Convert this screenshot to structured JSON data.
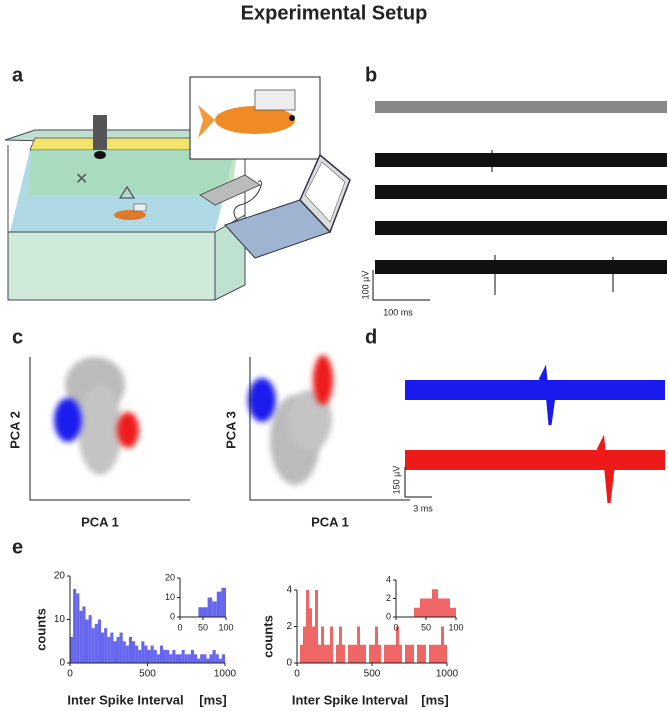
{
  "title": "Experimental Setup",
  "panels": {
    "a": "a",
    "b": "b",
    "c": "c",
    "d": "d",
    "e": "e"
  },
  "panel_b": {
    "scale_y": "100 µV",
    "scale_x": "100 ms"
  },
  "panel_c": {
    "y1": "PCA 2",
    "x1": "PCA 1",
    "y2": "PCA 3",
    "x2": "PCA 1"
  },
  "panel_d": {
    "scale_y": "150 µV",
    "scale_x": "3 ms"
  },
  "chart_data": [
    {
      "type": "histogram",
      "color": "#6666ee",
      "ylabel": "counts",
      "xlabel": "Inter Spike Interval",
      "xunit": "[ms]",
      "bins": [
        0,
        20,
        40,
        60,
        80,
        100,
        120,
        140,
        160,
        180,
        200,
        220,
        240,
        260,
        280,
        300,
        320,
        340,
        360,
        380,
        400,
        420,
        440,
        460,
        480,
        500,
        520,
        540,
        560,
        580,
        600,
        620,
        640,
        660,
        680,
        700,
        720,
        740,
        760,
        780,
        800,
        820,
        840,
        860,
        880,
        900,
        920,
        940,
        960,
        980,
        1000
      ],
      "values": [
        6,
        17,
        16,
        12,
        13,
        10,
        11,
        8,
        9,
        10,
        7,
        8,
        6,
        7,
        5,
        6,
        7,
        5,
        4,
        6,
        5,
        4,
        3,
        5,
        4,
        3,
        4,
        3,
        2,
        4,
        3,
        3,
        2,
        3,
        2,
        2,
        3,
        2,
        2,
        3,
        2,
        1,
        2,
        2,
        1,
        2,
        3,
        2,
        1,
        2
      ],
      "xlim": [
        0,
        1000
      ],
      "ylim": [
        0,
        20
      ],
      "xticks": [
        0,
        500,
        1000
      ],
      "yticks": [
        0,
        10,
        20
      ]
    },
    {
      "type": "histogram",
      "color": "#6666ee",
      "bins": [
        0,
        10,
        20,
        30,
        40,
        50,
        60,
        70,
        80,
        90,
        100
      ],
      "values": [
        0,
        0,
        0,
        0,
        5,
        5,
        10,
        8,
        13,
        15
      ],
      "xlim": [
        0,
        100
      ],
      "ylim": [
        0,
        20
      ],
      "xticks": [
        0,
        50,
        100
      ],
      "yticks": [
        0,
        10,
        20
      ]
    },
    {
      "type": "histogram",
      "color": "#ee6666",
      "ylabel": "counts",
      "xlabel": "Inter Spike Interval",
      "xunit": "[ms]",
      "bins": [
        0,
        20,
        40,
        60,
        80,
        100,
        120,
        140,
        160,
        180,
        200,
        220,
        240,
        260,
        280,
        300,
        320,
        340,
        360,
        380,
        400,
        420,
        440,
        460,
        480,
        500,
        520,
        540,
        560,
        580,
        600,
        620,
        640,
        660,
        680,
        700,
        720,
        740,
        760,
        780,
        800,
        820,
        840,
        860,
        880,
        900,
        920,
        940,
        960,
        980,
        1000
      ],
      "values": [
        0,
        1,
        2,
        4,
        3,
        2,
        4,
        1,
        2,
        1,
        1,
        2,
        0,
        1,
        2,
        1,
        0,
        1,
        1,
        1,
        2,
        1,
        1,
        0,
        1,
        1,
        2,
        1,
        0,
        1,
        1,
        1,
        1,
        2,
        1,
        0,
        1,
        1,
        1,
        0,
        1,
        1,
        1,
        0,
        1,
        1,
        1,
        1,
        2,
        1
      ],
      "xlim": [
        0,
        1000
      ],
      "ylim": [
        0,
        4
      ],
      "xticks": [
        0,
        500,
        1000
      ],
      "yticks": [
        0,
        2,
        4
      ]
    },
    {
      "type": "histogram",
      "color": "#ee6666",
      "bins": [
        0,
        10,
        20,
        30,
        40,
        50,
        60,
        70,
        80,
        90,
        100
      ],
      "values": [
        0,
        0,
        0,
        1,
        2,
        2,
        3,
        2,
        2,
        1
      ],
      "xlim": [
        0,
        100
      ],
      "ylim": [
        0,
        4
      ],
      "xticks": [
        0,
        50,
        100
      ],
      "yticks": [
        0,
        2,
        4
      ]
    }
  ]
}
